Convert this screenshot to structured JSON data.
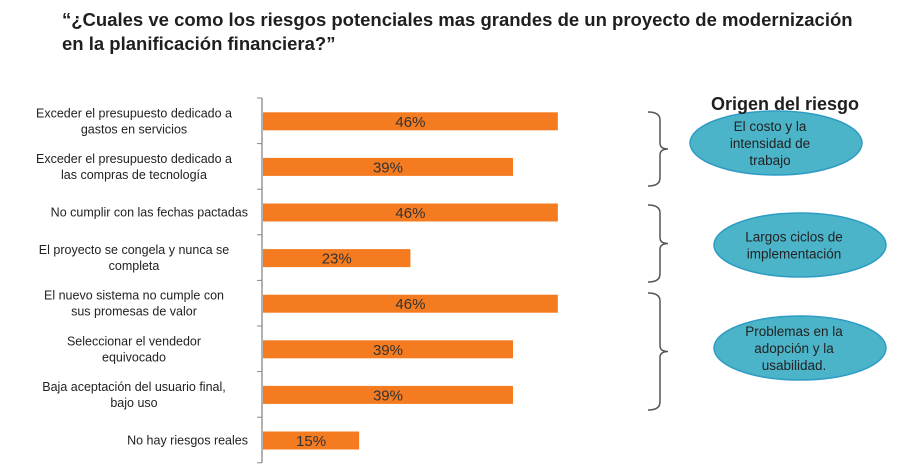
{
  "chart_data": {
    "type": "bar",
    "orientation": "horizontal",
    "title": "“¿Cuales ve como los riesgos potenciales  mas grandes de un proyecto de modernización  en la planificación  financiera?”",
    "categories": [
      "Exceder el presupuesto dedicado a gastos en servicios",
      "Exceder el presupuesto dedicado a las compras de tecnología",
      "No cumplir con las fechas pactadas",
      "El proyecto se congela y nunca se completa",
      "El nuevo sistema no cumple con sus promesas de valor",
      "Seleccionar el vendedor equivocado",
      "Baja aceptación del usuario final, bajo uso",
      "No hay riesgos reales"
    ],
    "category_lines": [
      [
        "Exceder el presupuesto dedicado a",
        "gastos en servicios"
      ],
      [
        "Exceder el presupuesto dedicado a",
        "las compras de tecnología"
      ],
      [
        "No cumplir con las fechas pactadas"
      ],
      [
        "El proyecto se congela y nunca se",
        "completa"
      ],
      [
        "El nuevo sistema no cumple con",
        "sus promesas de valor"
      ],
      [
        "Seleccionar el vendedor",
        "equivocado"
      ],
      [
        "Baja aceptación del usuario final,",
        "bajo uso"
      ],
      [
        "No hay riesgos reales"
      ]
    ],
    "values": [
      46,
      39,
      46,
      23,
      46,
      39,
      39,
      15
    ],
    "value_labels": [
      "46%",
      "39%",
      "46%",
      "23%",
      "46%",
      "39%",
      "39%",
      "15%"
    ],
    "unit": "%",
    "bar_color": "#F47B20",
    "grid": false
  },
  "origin": {
    "title": "Origen del riesgo",
    "color": "#4BB4C8",
    "groups": [
      {
        "lines": [
          "El costo y la",
          "intensidad de",
          "trabajo"
        ],
        "categories": [
          0,
          1
        ]
      },
      {
        "lines": [
          "Largos ciclos de",
          "implementación"
        ],
        "categories": [
          2,
          3
        ]
      },
      {
        "lines": [
          "Problemas en la",
          "adopción y la",
          "usabilidad."
        ],
        "categories": [
          4,
          5,
          6
        ]
      }
    ]
  }
}
